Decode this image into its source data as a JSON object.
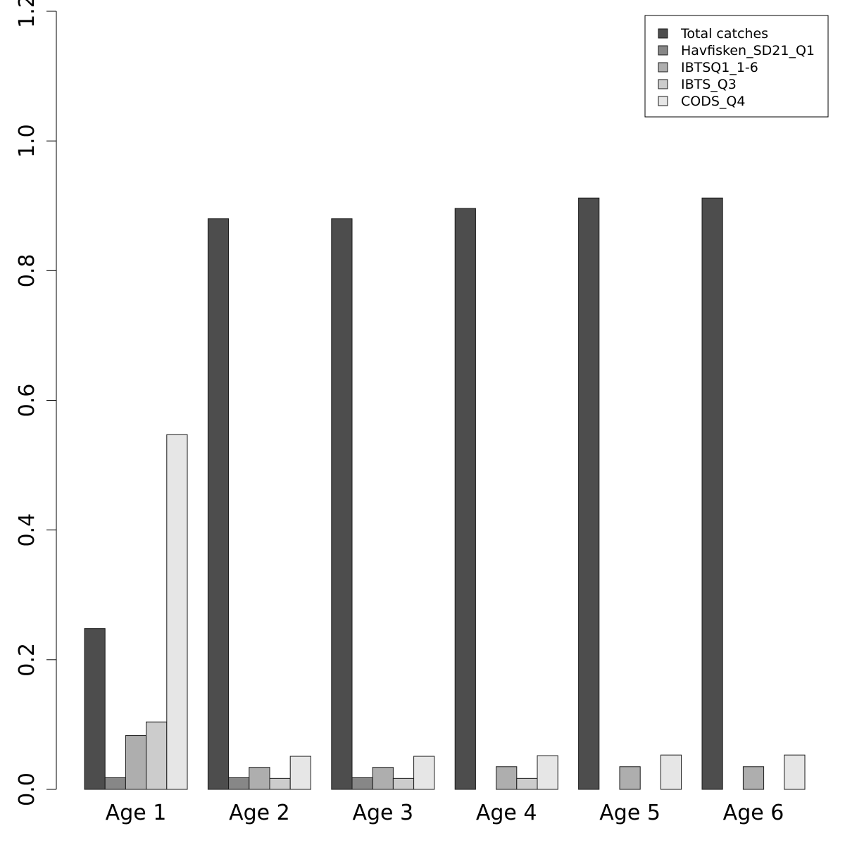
{
  "chart_data": {
    "type": "bar",
    "title": "",
    "xlabel": "",
    "ylabel": "",
    "ylim": [
      0,
      1.2
    ],
    "yticks": [
      "0.0",
      "0.2",
      "0.4",
      "0.6",
      "0.8",
      "1.0",
      "1.2"
    ],
    "categories": [
      "Age 1",
      "Age 2",
      "Age 3",
      "Age 4",
      "Age 5",
      "Age 6"
    ],
    "legend_position": "top-right",
    "series": [
      {
        "name": "Total catches",
        "color": "#4d4d4d",
        "values": [
          0.248,
          0.88,
          0.88,
          0.896,
          0.912,
          0.912
        ]
      },
      {
        "name": "Havfisken_SD21_Q1",
        "color": "#878787",
        "values": [
          0.018,
          0.018,
          0.018,
          0,
          0,
          0
        ]
      },
      {
        "name": "IBTSQ1_1-6",
        "color": "#aeaeae",
        "values": [
          0.083,
          0.034,
          0.034,
          0.035,
          0.035,
          0.035
        ]
      },
      {
        "name": "IBTS_Q3",
        "color": "#cccccc",
        "values": [
          0.104,
          0.017,
          0.017,
          0.017,
          0,
          0
        ]
      },
      {
        "name": "CODS_Q4",
        "color": "#e6e6e6",
        "values": [
          0.547,
          0.051,
          0.051,
          0.052,
          0.053,
          0.053
        ]
      }
    ]
  }
}
